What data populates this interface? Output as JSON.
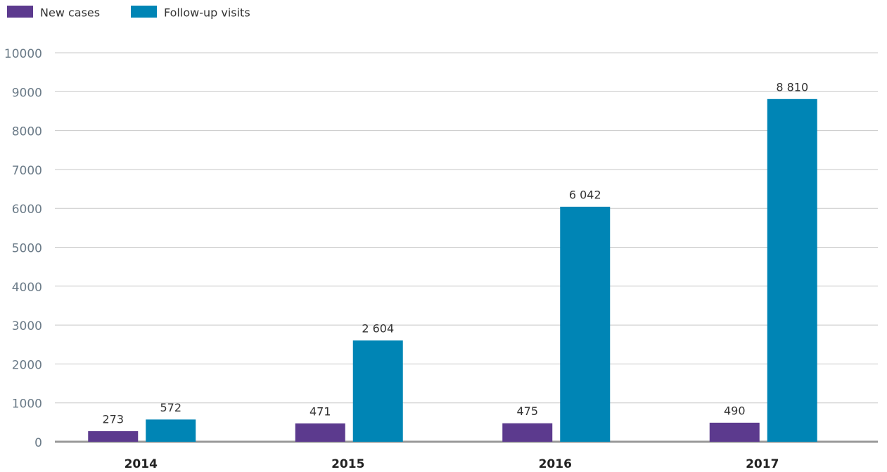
{
  "chart_data": {
    "type": "bar",
    "categories": [
      "2014",
      "2015",
      "2016",
      "2017"
    ],
    "series": [
      {
        "name": "New cases",
        "color": "#5c3a8e",
        "values": [
          273,
          471,
          475,
          490
        ]
      },
      {
        "name": "Follow-up visits",
        "color": "#0085b5",
        "values": [
          572,
          2604,
          6042,
          8810
        ],
        "value_labels": [
          "572",
          "2 604",
          "6 042",
          "8 810"
        ]
      }
    ],
    "ylim": [
      0,
      10000
    ],
    "yticks": [
      0,
      1000,
      2000,
      3000,
      4000,
      5000,
      6000,
      7000,
      8000,
      9000,
      10000
    ],
    "grid": true,
    "legend": "top-left"
  }
}
